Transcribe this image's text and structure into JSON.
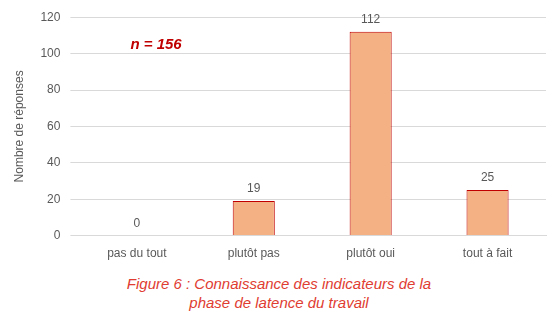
{
  "chart_data": {
    "type": "bar",
    "title": "Figure 6 : Connaissance des indicateurs de la phase de latence du travail",
    "y_label": "Nombre de réponses",
    "annotations": [
      "n = 156"
    ],
    "categories": [
      "pas du tout",
      "plutôt pas",
      "plutôt oui",
      "tout à fait"
    ],
    "values": [
      0,
      19,
      112,
      25
    ],
    "color": "#f4b183",
    "ylim": [
      0,
      120
    ],
    "yticks": [
      0,
      20,
      40,
      60,
      80,
      100,
      120
    ],
    "grid": true,
    "data_labels": true,
    "legend": "none"
  }
}
